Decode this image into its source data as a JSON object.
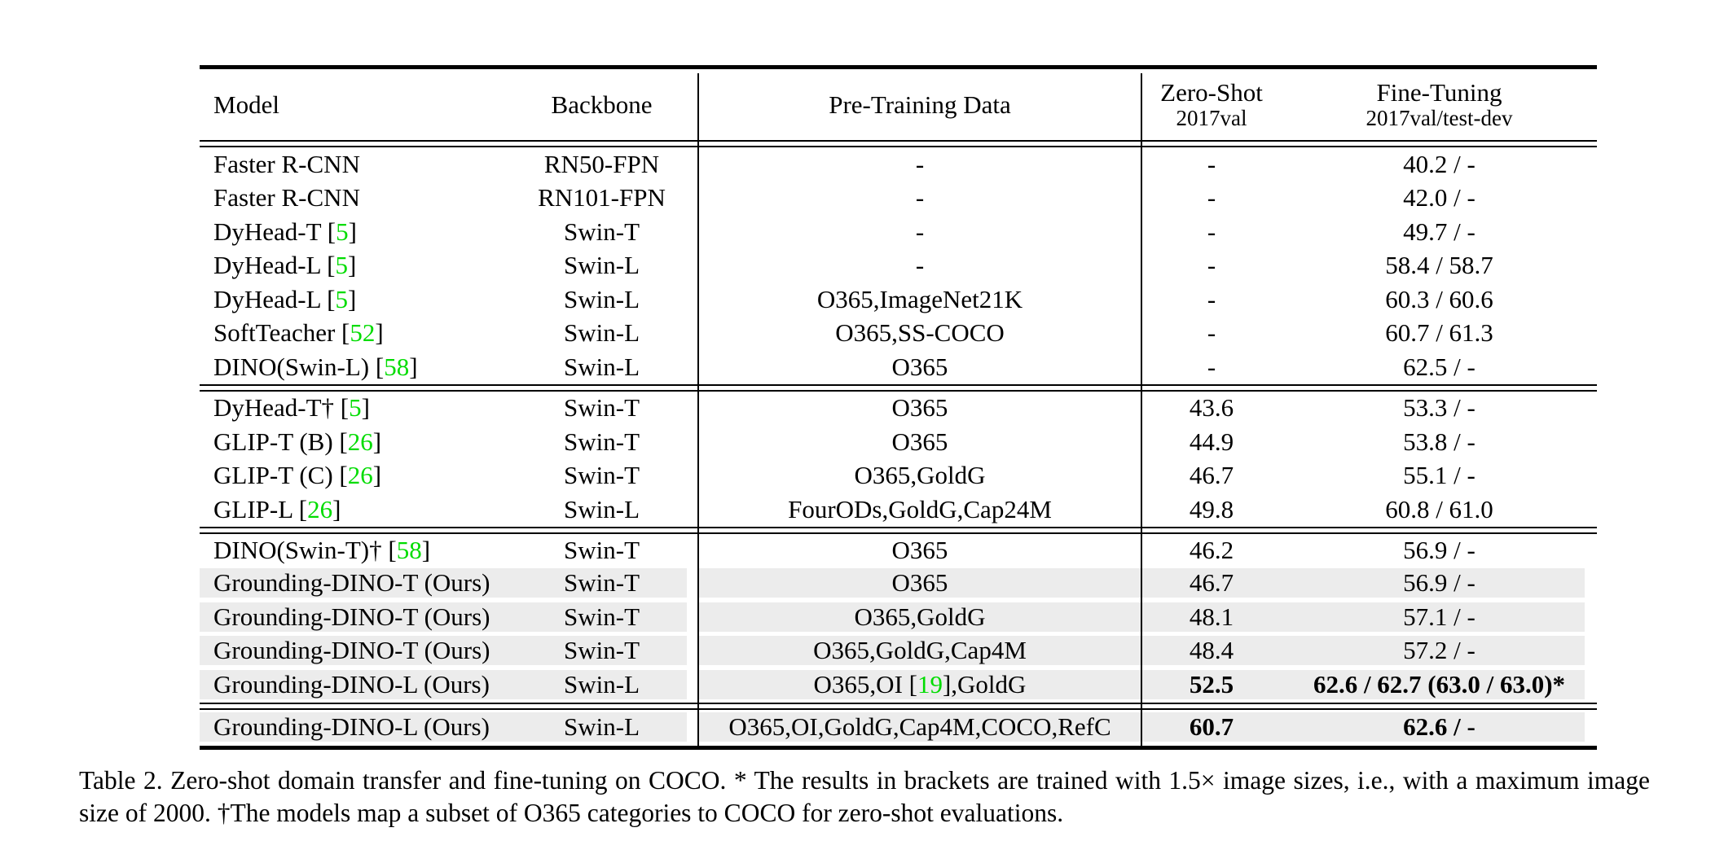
{
  "colors": {
    "cite_green": "#00DC00",
    "row_highlight": "#ECECEC",
    "rule_black": "#000000",
    "page_bg": "#FFFFFF"
  },
  "table": {
    "headers": {
      "model": "Model",
      "backbone": "Backbone",
      "pretrain": "Pre-Training Data",
      "zeroshot_title": "Zero-Shot",
      "zeroshot_sub": "2017val",
      "finetune_title": "Fine-Tuning",
      "finetune_sub": "2017val/test-dev"
    },
    "groups": [
      {
        "rows": [
          {
            "model": [
              {
                "t": "Faster R-CNN"
              }
            ],
            "backbone": "RN50-FPN",
            "pretrain": [
              {
                "t": "-"
              }
            ],
            "zeroshot": "-",
            "finetune": "40.2 / -",
            "bold": false,
            "highlight": false
          },
          {
            "model": [
              {
                "t": "Faster R-CNN"
              }
            ],
            "backbone": "RN101-FPN",
            "pretrain": [
              {
                "t": "-"
              }
            ],
            "zeroshot": "-",
            "finetune": "42.0 / -",
            "bold": false,
            "highlight": false
          },
          {
            "model": [
              {
                "t": "DyHead-T ["
              },
              {
                "t": "5",
                "cite": true
              },
              {
                "t": "]"
              }
            ],
            "backbone": "Swin-T",
            "pretrain": [
              {
                "t": "-"
              }
            ],
            "zeroshot": "-",
            "finetune": "49.7 / -",
            "bold": false,
            "highlight": false
          },
          {
            "model": [
              {
                "t": "DyHead-L ["
              },
              {
                "t": "5",
                "cite": true
              },
              {
                "t": "]"
              }
            ],
            "backbone": "Swin-L",
            "pretrain": [
              {
                "t": "-"
              }
            ],
            "zeroshot": "-",
            "finetune": "58.4 / 58.7",
            "bold": false,
            "highlight": false
          },
          {
            "model": [
              {
                "t": "DyHead-L ["
              },
              {
                "t": "5",
                "cite": true
              },
              {
                "t": "]"
              }
            ],
            "backbone": "Swin-L",
            "pretrain": [
              {
                "t": "O365,ImageNet21K"
              }
            ],
            "zeroshot": "-",
            "finetune": "60.3 / 60.6",
            "bold": false,
            "highlight": false
          },
          {
            "model": [
              {
                "t": "SoftTeacher ["
              },
              {
                "t": "52",
                "cite": true
              },
              {
                "t": "]"
              }
            ],
            "backbone": "Swin-L",
            "pretrain": [
              {
                "t": "O365,SS-COCO"
              }
            ],
            "zeroshot": "-",
            "finetune": "60.7 / 61.3",
            "bold": false,
            "highlight": false
          },
          {
            "model": [
              {
                "t": "DINO(Swin-L) ["
              },
              {
                "t": "58",
                "cite": true
              },
              {
                "t": "]"
              }
            ],
            "backbone": "Swin-L",
            "pretrain": [
              {
                "t": "O365"
              }
            ],
            "zeroshot": "-",
            "finetune": "62.5 / -",
            "bold": false,
            "highlight": false
          }
        ]
      },
      {
        "rows": [
          {
            "model": [
              {
                "t": "DyHead-T† ["
              },
              {
                "t": "5",
                "cite": true
              },
              {
                "t": "]"
              }
            ],
            "backbone": "Swin-T",
            "pretrain": [
              {
                "t": "O365"
              }
            ],
            "zeroshot": "43.6",
            "finetune": "53.3 / -",
            "bold": false,
            "highlight": false
          },
          {
            "model": [
              {
                "t": "GLIP-T (B) ["
              },
              {
                "t": "26",
                "cite": true
              },
              {
                "t": "]"
              }
            ],
            "backbone": "Swin-T",
            "pretrain": [
              {
                "t": "O365"
              }
            ],
            "zeroshot": "44.9",
            "finetune": "53.8 / -",
            "bold": false,
            "highlight": false
          },
          {
            "model": [
              {
                "t": "GLIP-T (C) ["
              },
              {
                "t": "26",
                "cite": true
              },
              {
                "t": "]"
              }
            ],
            "backbone": "Swin-T",
            "pretrain": [
              {
                "t": "O365,GoldG"
              }
            ],
            "zeroshot": "46.7",
            "finetune": "55.1 / -",
            "bold": false,
            "highlight": false
          },
          {
            "model": [
              {
                "t": "GLIP-L ["
              },
              {
                "t": "26",
                "cite": true
              },
              {
                "t": "]"
              }
            ],
            "backbone": "Swin-L",
            "pretrain": [
              {
                "t": "FourODs,GoldG,Cap24M"
              }
            ],
            "zeroshot": "49.8",
            "finetune": "60.8 / 61.0",
            "bold": false,
            "highlight": false
          }
        ]
      },
      {
        "rows": [
          {
            "model": [
              {
                "t": "DINO(Swin-T)† ["
              },
              {
                "t": "58",
                "cite": true
              },
              {
                "t": "]"
              }
            ],
            "backbone": "Swin-T",
            "pretrain": [
              {
                "t": "O365"
              }
            ],
            "zeroshot": "46.2",
            "finetune": "56.9 / -",
            "bold": false,
            "highlight": false
          },
          {
            "model": [
              {
                "t": "Grounding-DINO-T (Ours)"
              }
            ],
            "backbone": "Swin-T",
            "pretrain": [
              {
                "t": "O365"
              }
            ],
            "zeroshot": "46.7",
            "finetune": "56.9 / -",
            "bold": false,
            "highlight": true
          },
          {
            "model": [
              {
                "t": "Grounding-DINO-T (Ours)"
              }
            ],
            "backbone": "Swin-T",
            "pretrain": [
              {
                "t": "O365,GoldG"
              }
            ],
            "zeroshot": "48.1",
            "finetune": "57.1 / -",
            "bold": false,
            "highlight": true
          },
          {
            "model": [
              {
                "t": "Grounding-DINO-T (Ours)"
              }
            ],
            "backbone": "Swin-T",
            "pretrain": [
              {
                "t": "O365,GoldG,Cap4M"
              }
            ],
            "zeroshot": "48.4",
            "finetune": "57.2 / -",
            "bold": false,
            "highlight": true
          },
          {
            "model": [
              {
                "t": "Grounding-DINO-L (Ours)"
              }
            ],
            "backbone": "Swin-L",
            "pretrain": [
              {
                "t": "O365,OI ["
              },
              {
                "t": "19",
                "cite": true
              },
              {
                "t": "],GoldG"
              }
            ],
            "zeroshot": "52.5",
            "finetune": "62.6 / 62.7 (63.0 / 63.0)*",
            "bold": true,
            "highlight": true
          }
        ]
      },
      {
        "rows": [
          {
            "model": [
              {
                "t": "Grounding-DINO-L (Ours)"
              }
            ],
            "backbone": "Swin-L",
            "pretrain": [
              {
                "t": "O365,OI,GoldG,Cap4M,COCO,RefC"
              }
            ],
            "zeroshot": "60.7",
            "finetune": "62.6 / -",
            "bold": true,
            "highlight": true
          }
        ]
      }
    ]
  },
  "caption": {
    "text": "Table 2.  Zero-shot domain transfer and fine-tuning on COCO. * The results in brackets are trained with 1.5× image sizes, i.e., with a maximum image size of 2000. †The models map a subset of O365 categories to COCO for zero-shot evaluations."
  }
}
